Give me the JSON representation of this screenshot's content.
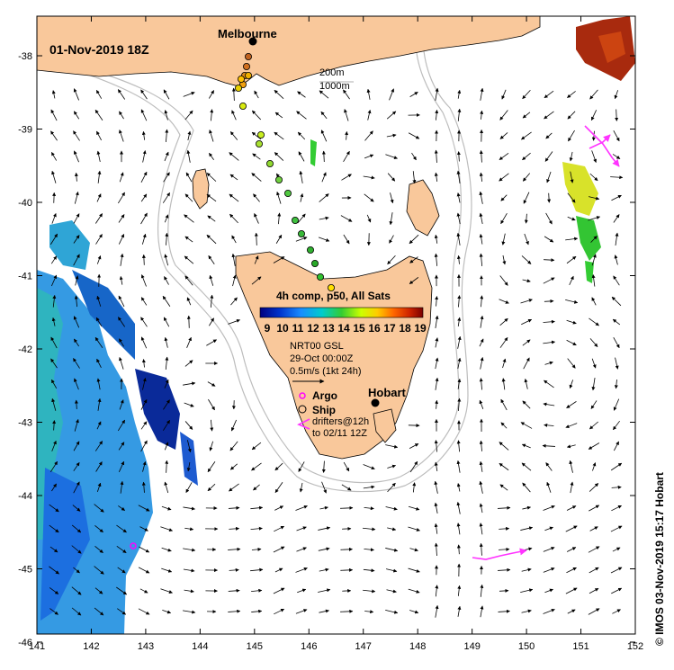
{
  "map": {
    "date_title": "01-Nov-2019 18Z",
    "city_north": "Melbourne",
    "city_south": "Hobart",
    "contour_label_200": "200m",
    "contour_label_1000": "1000m",
    "side_credit": "© IMOS 03-Nov-2019 15:17 Hobart",
    "x_ticks": [
      "141",
      "142",
      "143",
      "144",
      "145",
      "146",
      "147",
      "148",
      "149",
      "150",
      "151",
      "152"
    ],
    "y_ticks": [
      "-38",
      "-39",
      "-40",
      "-41",
      "-42",
      "-43",
      "-44",
      "-45",
      "-46"
    ]
  },
  "legend": {
    "title": "4h comp, p50, All Sats",
    "scale_labels": [
      "9",
      "10",
      "11",
      "12",
      "13",
      "14",
      "15",
      "16",
      "17",
      "18",
      "19"
    ],
    "product": "NRT00 GSL",
    "product_date": "29-Oct 00:00Z",
    "vector_scale": "0.5m/s (1kt 24h)",
    "argo_label": "Argo",
    "ship_label": "Ship",
    "drifters_line1": "drifters@12h",
    "drifters_line2": "to 02/11 12Z"
  },
  "colors": {
    "land": "#f9c89b",
    "coast": "#000000",
    "isobath": "#bdbdbd",
    "argo": "#ff00ff",
    "drifter": "#ff33ff"
  }
}
